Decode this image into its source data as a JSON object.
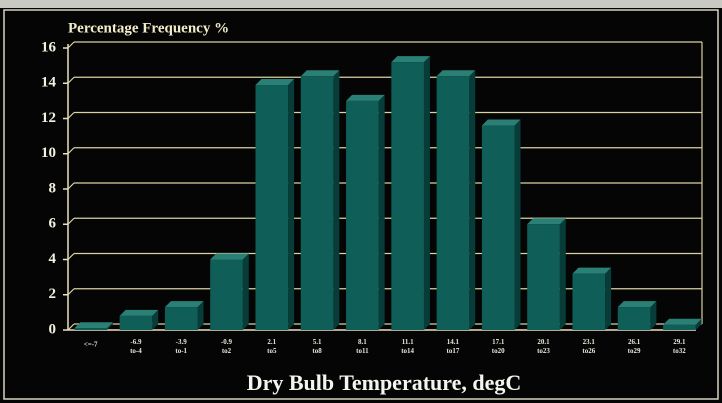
{
  "chart_data": {
    "type": "bar",
    "title": "Percentage Frequency %",
    "x_label": "Dry Bulb Temperature, degC",
    "categories": [
      "<=-7",
      "-6.9 to-4",
      "-3.9 to-1",
      "-0.9 to2",
      "2.1 to5",
      "5.1 to8",
      "8.1 to11",
      "11.1 to14",
      "14.1 to17",
      "17.1 to20",
      "20.1 to23",
      "23.1 to26",
      "26.1 to29",
      "29.1 to32"
    ],
    "values": [
      0.1,
      0.8,
      1.3,
      4,
      13.9,
      14.4,
      13,
      15.2,
      14.4,
      11.6,
      6,
      3.2,
      1.3,
      0.3
    ],
    "color": "#0f5f58",
    "ylim": [
      0,
      16
    ],
    "yticks": [
      0,
      2,
      4,
      6,
      8,
      10,
      12,
      14,
      16
    ],
    "grid": true
  }
}
